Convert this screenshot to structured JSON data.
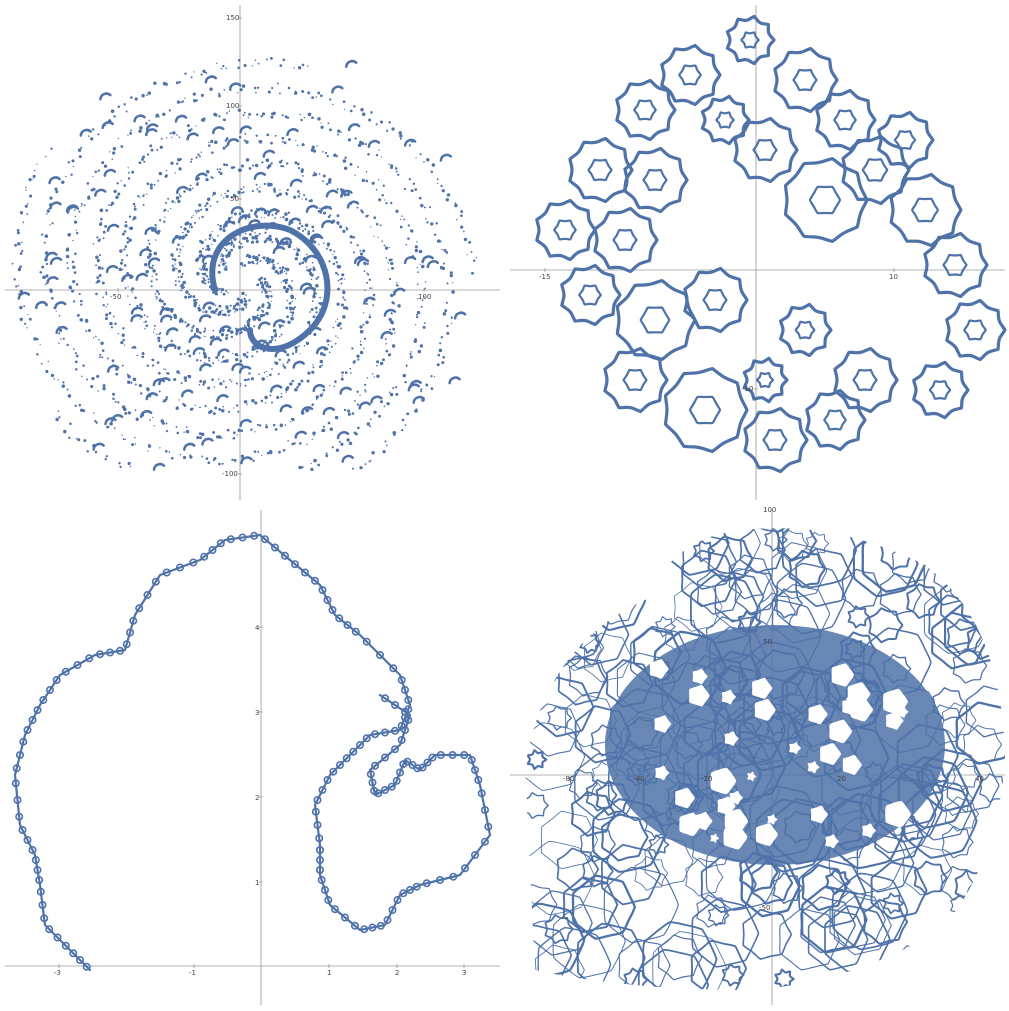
{
  "chart_data": [
    {
      "type": "scatter",
      "title": "",
      "xlabel": "",
      "ylabel": "",
      "xlim": [
        -130,
        135
      ],
      "ylim": [
        -112,
        158
      ],
      "x_ticks": [
        "-50",
        "100"
      ],
      "y_ticks": [
        "150",
        "100",
        "50",
        "-100"
      ],
      "series_color": "#4f72a8",
      "description_points": [
        [
          -30,
          30
        ],
        [
          20,
          40
        ],
        [
          0,
          0
        ]
      ]
    },
    {
      "type": "line",
      "title": "",
      "xlabel": "",
      "ylabel": "",
      "xlim": [
        -17.5,
        18.5
      ],
      "ylim": [
        -15.5,
        17.5
      ],
      "x_ticks": [
        "-15",
        "10"
      ],
      "y_ticks": [
        "-10"
      ],
      "series_color": "#4f72a8"
    },
    {
      "type": "line",
      "title": "",
      "xlabel": "",
      "ylabel": "",
      "xlim": [
        -3.8,
        3.6
      ],
      "ylim": [
        -0.4,
        5.2
      ],
      "x_ticks": [
        "-3",
        "-1",
        "1",
        "2",
        "3"
      ],
      "y_ticks": [
        "4",
        "3",
        "2",
        "1"
      ],
      "series_color": "#4f72a8"
    },
    {
      "type": "line",
      "title": "",
      "xlabel": "",
      "ylabel": "",
      "xlim": [
        -120,
        120
      ],
      "ylim": [
        -120,
        100
      ],
      "x_ticks": [
        "-80",
        "-40",
        "-20",
        "20",
        "40"
      ],
      "y_ticks": [
        "100",
        "50",
        "-50"
      ],
      "series_color": "#4f72a8"
    }
  ]
}
